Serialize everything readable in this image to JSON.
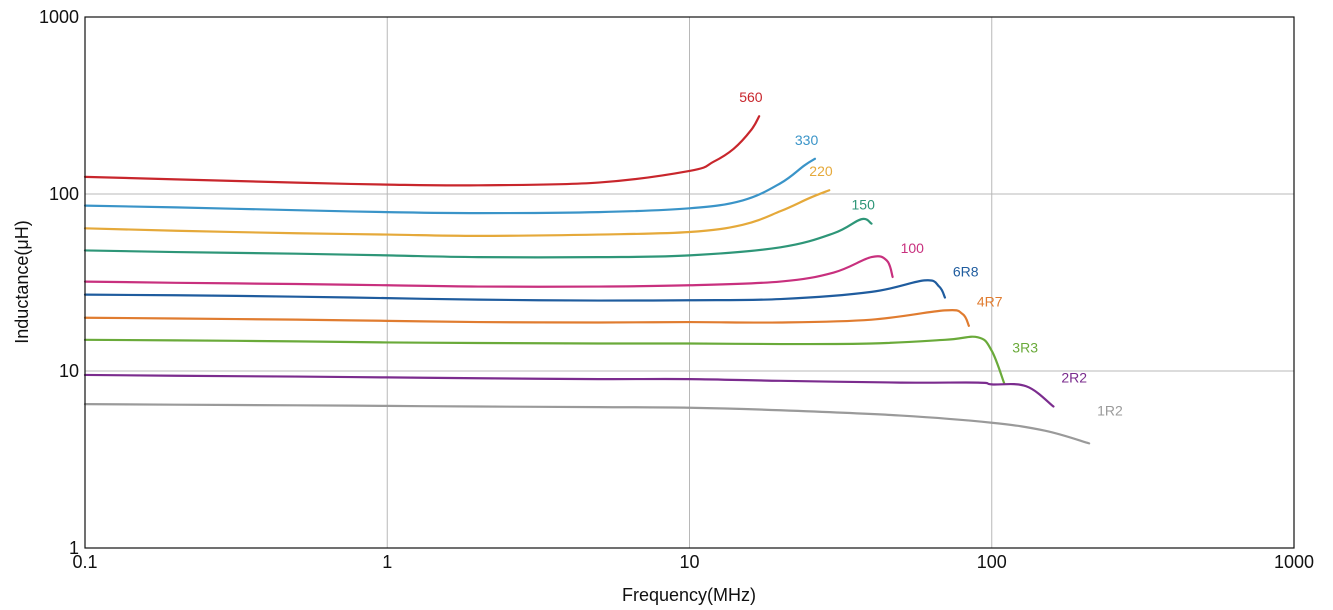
{
  "chart_data": {
    "type": "line",
    "xlabel": "Frequency(MHz)",
    "ylabel": "Inductance(μH)",
    "x_scale": "log",
    "y_scale": "log",
    "xlim": [
      0.1,
      1000
    ],
    "ylim": [
      1,
      1000
    ],
    "x_ticks": [
      0.1,
      1,
      10,
      100,
      1000
    ],
    "x_tick_labels": [
      "0.1",
      "1",
      "10",
      "100",
      "1000"
    ],
    "y_ticks": [
      1,
      10,
      100,
      1000
    ],
    "y_tick_labels": [
      "1",
      "10",
      "100",
      "1000"
    ],
    "grid": true,
    "legend": "inline labels at series ends",
    "series": [
      {
        "name": "560",
        "color": "#C8262C",
        "x": [
          0.1,
          0.2,
          0.5,
          1,
          2,
          5,
          10,
          12,
          14,
          16,
          17
        ],
        "y": [
          125,
          121,
          116,
          113,
          112,
          116,
          135,
          152,
          180,
          230,
          275
        ]
      },
      {
        "name": "330",
        "color": "#3A94C8",
        "x": [
          0.1,
          0.2,
          0.5,
          1,
          2,
          5,
          10,
          15,
          20,
          24,
          26
        ],
        "y": [
          86,
          84,
          81,
          79,
          78,
          79,
          83,
          92,
          115,
          145,
          158
        ]
      },
      {
        "name": "220",
        "color": "#E5A93A",
        "x": [
          0.1,
          0.2,
          0.5,
          1,
          2,
          5,
          10,
          15,
          20,
          25,
          29
        ],
        "y": [
          64,
          62,
          60,
          59,
          58,
          59,
          61,
          67,
          80,
          95,
          105
        ]
      },
      {
        "name": "150",
        "color": "#2E9678",
        "x": [
          0.1,
          0.2,
          0.5,
          1,
          2,
          5,
          10,
          20,
          30,
          37,
          40
        ],
        "y": [
          48,
          47,
          46,
          45,
          44,
          44,
          45,
          50,
          60,
          72,
          68
        ]
      },
      {
        "name": "100",
        "color": "#C8307E",
        "x": [
          0.1,
          0.2,
          0.5,
          1,
          2,
          5,
          10,
          20,
          30,
          40,
          45,
          47
        ],
        "y": [
          32,
          31.5,
          31,
          30.5,
          30,
          30,
          30.5,
          32,
          36,
          44,
          42,
          34
        ]
      },
      {
        "name": "6R8",
        "color": "#1F5C9E",
        "x": [
          0.1,
          0.2,
          0.5,
          1,
          2,
          5,
          10,
          20,
          40,
          60,
          67,
          70
        ],
        "y": [
          27,
          26.8,
          26.3,
          25.8,
          25.3,
          25,
          25.1,
          25.5,
          28,
          32.5,
          30,
          26
        ]
      },
      {
        "name": "4R7",
        "color": "#E07C30",
        "x": [
          0.1,
          0.2,
          0.5,
          1,
          2,
          5,
          10,
          20,
          40,
          70,
          80,
          84
        ],
        "y": [
          20,
          19.8,
          19.5,
          19.2,
          18.9,
          18.8,
          18.9,
          18.8,
          19.5,
          22,
          21,
          18
        ]
      },
      {
        "name": "3R3",
        "color": "#6AAA3A",
        "x": [
          0.1,
          0.2,
          0.5,
          1,
          2,
          5,
          10,
          20,
          40,
          70,
          90,
          100,
          110
        ],
        "y": [
          15,
          14.9,
          14.7,
          14.5,
          14.4,
          14.3,
          14.3,
          14.2,
          14.3,
          15,
          15.5,
          13,
          8.5
        ]
      },
      {
        "name": "2R2",
        "color": "#7B2C8E",
        "x": [
          0.1,
          0.2,
          0.5,
          1,
          2,
          5,
          10,
          20,
          50,
          90,
          100,
          130,
          160
        ],
        "y": [
          9.5,
          9.4,
          9.3,
          9.2,
          9.1,
          9,
          9,
          8.8,
          8.6,
          8.6,
          8.4,
          8.2,
          6.3
        ]
      },
      {
        "name": "1R2",
        "color": "#9A9A9A",
        "x": [
          0.1,
          0.2,
          0.5,
          1,
          2,
          5,
          10,
          20,
          50,
          100,
          150,
          210
        ],
        "y": [
          6.5,
          6.45,
          6.4,
          6.35,
          6.3,
          6.25,
          6.2,
          6,
          5.6,
          5.1,
          4.6,
          3.9
        ]
      }
    ]
  }
}
